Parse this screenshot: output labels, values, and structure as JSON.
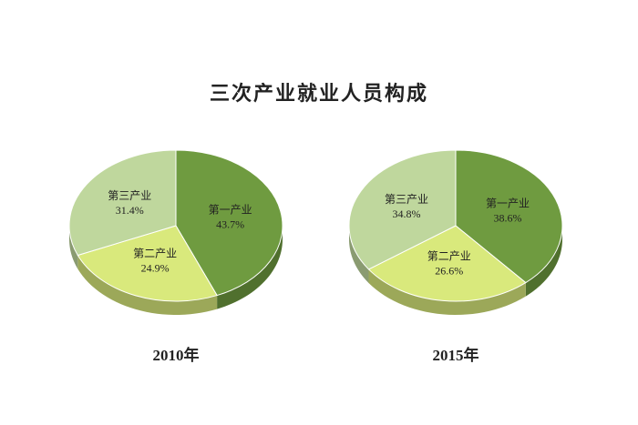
{
  "title": "三次产业就业人员构成",
  "chart_data": [
    {
      "type": "pie",
      "title": "2010年",
      "categories": [
        "第一产业",
        "第二产业",
        "第三产业"
      ],
      "values": [
        43.7,
        24.9,
        31.4
      ],
      "value_labels": [
        "43.7%",
        "24.9%",
        "31.4%"
      ],
      "colors": [
        "#6f9b40",
        "#d9e97c",
        "#bfd79d"
      ]
    },
    {
      "type": "pie",
      "title": "2015年",
      "categories": [
        "第一产业",
        "第二产业",
        "第三产业"
      ],
      "values": [
        38.6,
        26.6,
        34.8
      ],
      "value_labels": [
        "38.6%",
        "26.6%",
        "34.8%"
      ],
      "colors": [
        "#6f9b40",
        "#d9e97c",
        "#bfd79d"
      ]
    }
  ]
}
